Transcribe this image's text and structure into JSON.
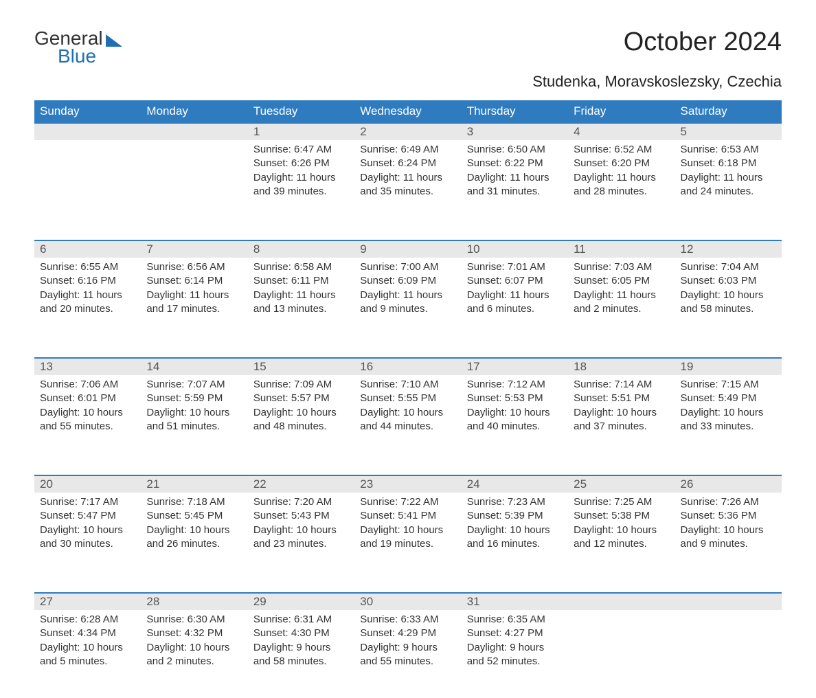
{
  "brand": {
    "line1": "General",
    "line2": "Blue"
  },
  "title": "October 2024",
  "location": "Studenka, Moravskoslezsky, Czechia",
  "colors": {
    "header_bg": "#2f7bbf",
    "header_text": "#ffffff",
    "daynum_bg": "#e8e8e8",
    "daynum_text": "#555555",
    "body_text": "#333333",
    "rule": "#2f7bbf",
    "page_bg": "#ffffff",
    "brand_blue": "#1f6fb2"
  },
  "typography": {
    "title_fontsize": 38,
    "subtitle_fontsize": 22,
    "header_fontsize": 17,
    "daynum_fontsize": 17,
    "body_fontsize": 15,
    "font_family": "Arial"
  },
  "weekdays": [
    "Sunday",
    "Monday",
    "Tuesday",
    "Wednesday",
    "Thursday",
    "Friday",
    "Saturday"
  ],
  "weeks": [
    [
      null,
      null,
      {
        "n": "1",
        "sunrise": "6:47 AM",
        "sunset": "6:26 PM",
        "daylight": "11 hours and 39 minutes."
      },
      {
        "n": "2",
        "sunrise": "6:49 AM",
        "sunset": "6:24 PM",
        "daylight": "11 hours and 35 minutes."
      },
      {
        "n": "3",
        "sunrise": "6:50 AM",
        "sunset": "6:22 PM",
        "daylight": "11 hours and 31 minutes."
      },
      {
        "n": "4",
        "sunrise": "6:52 AM",
        "sunset": "6:20 PM",
        "daylight": "11 hours and 28 minutes."
      },
      {
        "n": "5",
        "sunrise": "6:53 AM",
        "sunset": "6:18 PM",
        "daylight": "11 hours and 24 minutes."
      }
    ],
    [
      {
        "n": "6",
        "sunrise": "6:55 AM",
        "sunset": "6:16 PM",
        "daylight": "11 hours and 20 minutes."
      },
      {
        "n": "7",
        "sunrise": "6:56 AM",
        "sunset": "6:14 PM",
        "daylight": "11 hours and 17 minutes."
      },
      {
        "n": "8",
        "sunrise": "6:58 AM",
        "sunset": "6:11 PM",
        "daylight": "11 hours and 13 minutes."
      },
      {
        "n": "9",
        "sunrise": "7:00 AM",
        "sunset": "6:09 PM",
        "daylight": "11 hours and 9 minutes."
      },
      {
        "n": "10",
        "sunrise": "7:01 AM",
        "sunset": "6:07 PM",
        "daylight": "11 hours and 6 minutes."
      },
      {
        "n": "11",
        "sunrise": "7:03 AM",
        "sunset": "6:05 PM",
        "daylight": "11 hours and 2 minutes."
      },
      {
        "n": "12",
        "sunrise": "7:04 AM",
        "sunset": "6:03 PM",
        "daylight": "10 hours and 58 minutes."
      }
    ],
    [
      {
        "n": "13",
        "sunrise": "7:06 AM",
        "sunset": "6:01 PM",
        "daylight": "10 hours and 55 minutes."
      },
      {
        "n": "14",
        "sunrise": "7:07 AM",
        "sunset": "5:59 PM",
        "daylight": "10 hours and 51 minutes."
      },
      {
        "n": "15",
        "sunrise": "7:09 AM",
        "sunset": "5:57 PM",
        "daylight": "10 hours and 48 minutes."
      },
      {
        "n": "16",
        "sunrise": "7:10 AM",
        "sunset": "5:55 PM",
        "daylight": "10 hours and 44 minutes."
      },
      {
        "n": "17",
        "sunrise": "7:12 AM",
        "sunset": "5:53 PM",
        "daylight": "10 hours and 40 minutes."
      },
      {
        "n": "18",
        "sunrise": "7:14 AM",
        "sunset": "5:51 PM",
        "daylight": "10 hours and 37 minutes."
      },
      {
        "n": "19",
        "sunrise": "7:15 AM",
        "sunset": "5:49 PM",
        "daylight": "10 hours and 33 minutes."
      }
    ],
    [
      {
        "n": "20",
        "sunrise": "7:17 AM",
        "sunset": "5:47 PM",
        "daylight": "10 hours and 30 minutes."
      },
      {
        "n": "21",
        "sunrise": "7:18 AM",
        "sunset": "5:45 PM",
        "daylight": "10 hours and 26 minutes."
      },
      {
        "n": "22",
        "sunrise": "7:20 AM",
        "sunset": "5:43 PM",
        "daylight": "10 hours and 23 minutes."
      },
      {
        "n": "23",
        "sunrise": "7:22 AM",
        "sunset": "5:41 PM",
        "daylight": "10 hours and 19 minutes."
      },
      {
        "n": "24",
        "sunrise": "7:23 AM",
        "sunset": "5:39 PM",
        "daylight": "10 hours and 16 minutes."
      },
      {
        "n": "25",
        "sunrise": "7:25 AM",
        "sunset": "5:38 PM",
        "daylight": "10 hours and 12 minutes."
      },
      {
        "n": "26",
        "sunrise": "7:26 AM",
        "sunset": "5:36 PM",
        "daylight": "10 hours and 9 minutes."
      }
    ],
    [
      {
        "n": "27",
        "sunrise": "6:28 AM",
        "sunset": "4:34 PM",
        "daylight": "10 hours and 5 minutes."
      },
      {
        "n": "28",
        "sunrise": "6:30 AM",
        "sunset": "4:32 PM",
        "daylight": "10 hours and 2 minutes."
      },
      {
        "n": "29",
        "sunrise": "6:31 AM",
        "sunset": "4:30 PM",
        "daylight": "9 hours and 58 minutes."
      },
      {
        "n": "30",
        "sunrise": "6:33 AM",
        "sunset": "4:29 PM",
        "daylight": "9 hours and 55 minutes."
      },
      {
        "n": "31",
        "sunrise": "6:35 AM",
        "sunset": "4:27 PM",
        "daylight": "9 hours and 52 minutes."
      },
      null,
      null
    ]
  ],
  "labels": {
    "sunrise": "Sunrise: ",
    "sunset": "Sunset: ",
    "daylight": "Daylight: "
  }
}
